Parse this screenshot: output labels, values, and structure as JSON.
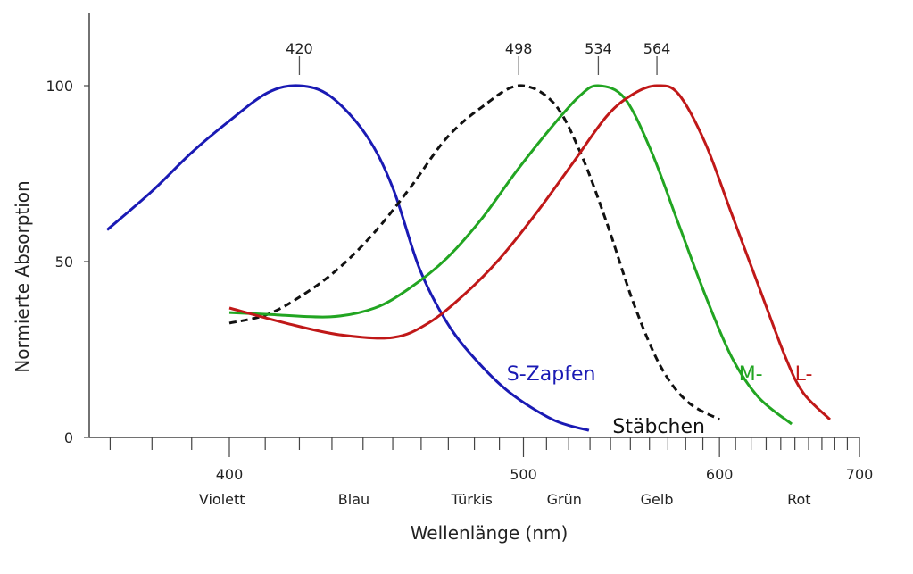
{
  "chart_data": {
    "type": "line",
    "xlabel": "Wellenlänge (nm)",
    "ylabel": "Normierte Absorption",
    "x_scale": "reciprocal",
    "xlim": [
      365,
      700
    ],
    "ylim": [
      0,
      120
    ],
    "x_ticks_labeled": [
      400,
      500,
      600,
      700
    ],
    "x_minor_ticks_step": 10,
    "y_ticks": [
      0,
      50,
      100
    ],
    "grid": false,
    "color_bands": [
      {
        "label": "Violett",
        "x": 398
      },
      {
        "label": "Blau",
        "x": 437
      },
      {
        "label": "Türkis",
        "x": 479
      },
      {
        "label": "Grün",
        "x": 518
      },
      {
        "label": "Gelb",
        "x": 564
      },
      {
        "label": "Rot",
        "x": 653
      }
    ],
    "peak_markers": [
      {
        "label": "420",
        "x": 420
      },
      {
        "label": "498",
        "x": 498
      },
      {
        "label": "534",
        "x": 534
      },
      {
        "label": "564",
        "x": 564
      }
    ],
    "series": [
      {
        "name": "S-Zapfen",
        "color": "#1a1ab4",
        "style": "solid",
        "label_pos": [
          493,
          18
        ],
        "x": [
          369.3,
          380,
          390,
          400,
          410.7,
          419.9,
          429.5,
          441,
          450,
          459.4,
          469.2,
          479.4,
          493.8,
          513,
          529.5
        ],
        "y": [
          59,
          70,
          81,
          90,
          98,
          100,
          97,
          86,
          71,
          48,
          33,
          23,
          13,
          5,
          2
        ]
      },
      {
        "name": "Stäbchen",
        "color": "#111111",
        "style": "dashed",
        "label_pos": [
          541,
          3
        ],
        "x": [
          400,
          410.7,
          421.2,
          432.3,
          443.9,
          456.2,
          469.2,
          482.9,
          498,
          513,
          525.3,
          538.2,
          551.7,
          565.9,
          580.9,
          600
        ],
        "y": [
          32.5,
          35,
          40.6,
          48.2,
          58.4,
          71.1,
          85,
          93.9,
          100,
          95.2,
          81.2,
          60.9,
          38.1,
          20.3,
          10.2,
          5.1
        ]
      },
      {
        "name": "M-",
        "color": "#22a522",
        "style": "solid",
        "label_pos": [
          612,
          18
        ],
        "x": [
          400,
          410.7,
          429.5,
          443.9,
          456.2,
          469.2,
          482.9,
          497.5,
          513,
          525.3,
          534,
          547.1,
          561.1,
          575.8,
          591.3,
          607.6,
          624.9,
          647.7
        ],
        "y": [
          35.5,
          35,
          34.3,
          36.8,
          42.6,
          50.8,
          62.2,
          76.1,
          88.8,
          97.2,
          100,
          96.4,
          81.2,
          60.9,
          40.6,
          22.8,
          11.4,
          3.8
        ]
      },
      {
        "name": "L-",
        "color": "#c01818",
        "style": "solid",
        "label_pos": [
          650,
          18
        ],
        "x": [
          400,
          415.9,
          432.3,
          450,
          462.6,
          476,
          490.1,
          505.2,
          521.2,
          538.2,
          551.7,
          564,
          575.8,
          591.3,
          607.6,
          624.9,
          643.3,
          656,
          676.2
        ],
        "y": [
          36.8,
          32.5,
          29.2,
          28.4,
          32.5,
          40.6,
          50.8,
          63.5,
          77.4,
          91.4,
          97.7,
          100,
          97.7,
          83.8,
          63.5,
          43.1,
          22.8,
          12.7,
          5.1
        ]
      }
    ]
  }
}
